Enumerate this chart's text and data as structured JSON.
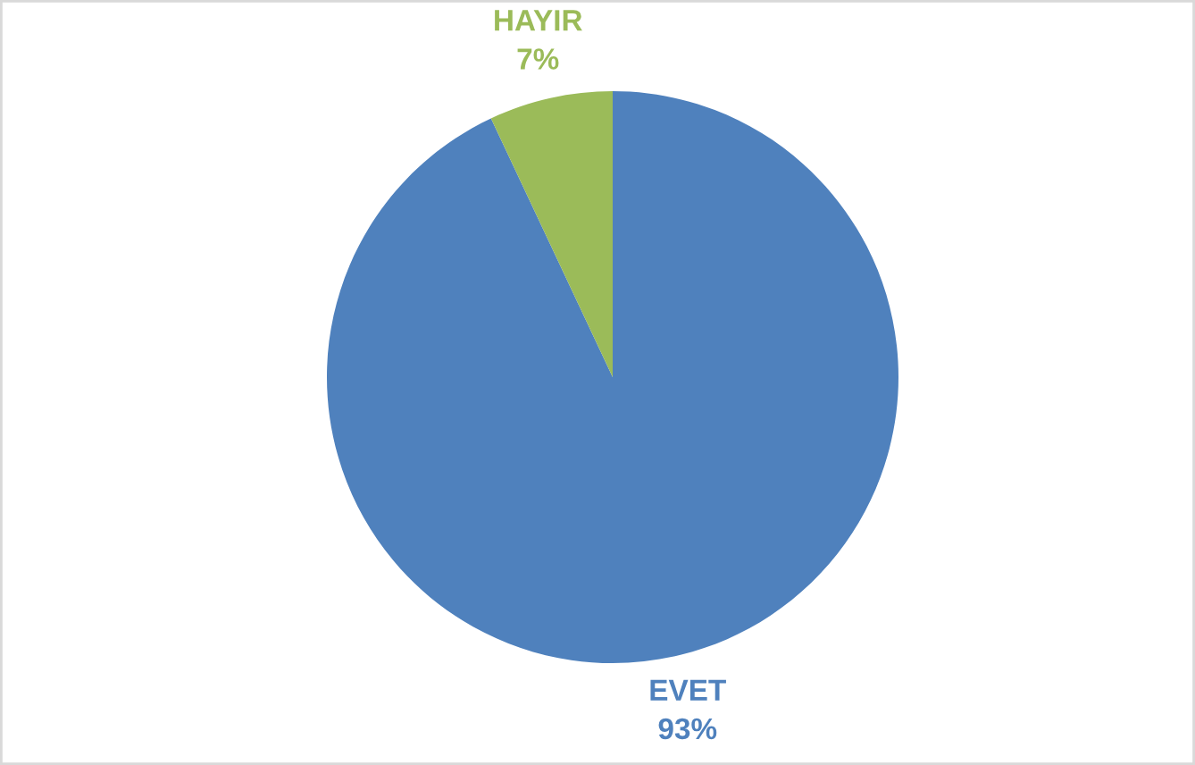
{
  "chart_data": {
    "type": "pie",
    "categories": [
      "EVET",
      "HAYIR"
    ],
    "values": [
      93,
      7
    ],
    "colors": [
      "#4f81bd",
      "#9bbb59"
    ],
    "value_labels": [
      "93%",
      "7%"
    ]
  }
}
